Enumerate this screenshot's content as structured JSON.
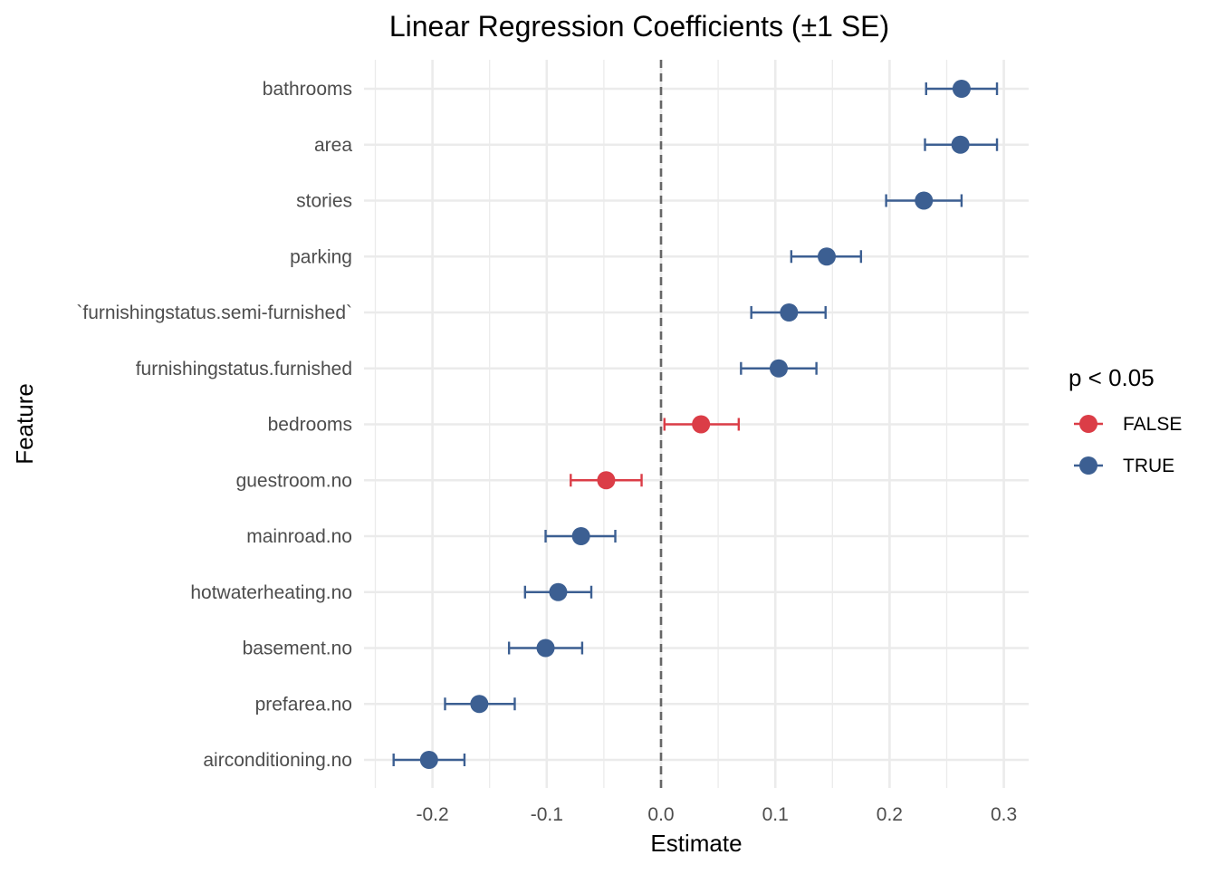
{
  "chart_data": {
    "type": "scatter",
    "title": "Linear Regression Coefficients (±1 SE)",
    "xlabel": "Estimate",
    "ylabel": "Feature",
    "xlim": [
      -0.255,
      0.32
    ],
    "x_ticks": [
      -0.2,
      -0.1,
      0.0,
      0.1,
      0.2,
      0.3
    ],
    "x_tick_labels": [
      "-0.2",
      "-0.1",
      "0.0",
      "0.1",
      "0.2",
      "0.3"
    ],
    "reference_line": {
      "x": 0,
      "style": "dashed",
      "color": "#666666"
    },
    "grid": true,
    "legend": {
      "title": "p < 0.05",
      "placement": "right",
      "entries": [
        {
          "label": "FALSE",
          "color": "#DB3D47"
        },
        {
          "label": "TRUE",
          "color": "#3C5F92"
        }
      ]
    },
    "features": [
      {
        "name": "bathrooms",
        "estimate": 0.263,
        "lower": 0.232,
        "upper": 0.294,
        "significant": "TRUE"
      },
      {
        "name": "area",
        "estimate": 0.262,
        "lower": 0.231,
        "upper": 0.294,
        "significant": "TRUE"
      },
      {
        "name": "stories",
        "estimate": 0.23,
        "lower": 0.197,
        "upper": 0.263,
        "significant": "TRUE"
      },
      {
        "name": "parking",
        "estimate": 0.145,
        "lower": 0.114,
        "upper": 0.175,
        "significant": "TRUE"
      },
      {
        "name": "`furnishingstatus.semi-furnished`",
        "estimate": 0.112,
        "lower": 0.079,
        "upper": 0.144,
        "significant": "TRUE"
      },
      {
        "name": "furnishingstatus.furnished",
        "estimate": 0.103,
        "lower": 0.07,
        "upper": 0.136,
        "significant": "TRUE"
      },
      {
        "name": "bedrooms",
        "estimate": 0.035,
        "lower": 0.003,
        "upper": 0.068,
        "significant": "FALSE"
      },
      {
        "name": "guestroom.no",
        "estimate": -0.048,
        "lower": -0.079,
        "upper": -0.017,
        "significant": "FALSE"
      },
      {
        "name": "mainroad.no",
        "estimate": -0.07,
        "lower": -0.101,
        "upper": -0.04,
        "significant": "TRUE"
      },
      {
        "name": "hotwaterheating.no",
        "estimate": -0.09,
        "lower": -0.119,
        "upper": -0.061,
        "significant": "TRUE"
      },
      {
        "name": "basement.no",
        "estimate": -0.101,
        "lower": -0.133,
        "upper": -0.069,
        "significant": "TRUE"
      },
      {
        "name": "prefarea.no",
        "estimate": -0.159,
        "lower": -0.189,
        "upper": -0.128,
        "significant": "TRUE"
      },
      {
        "name": "airconditioning.no",
        "estimate": -0.203,
        "lower": -0.234,
        "upper": -0.172,
        "significant": "TRUE"
      }
    ]
  }
}
